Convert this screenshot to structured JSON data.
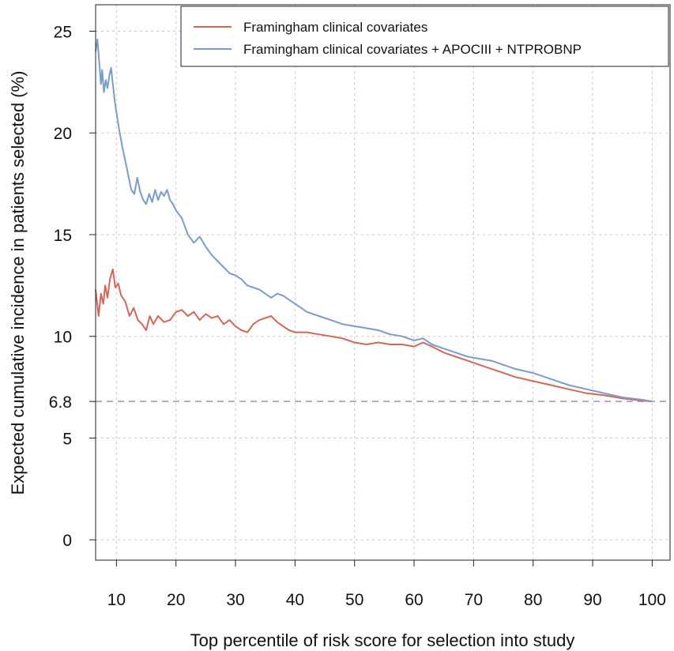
{
  "chart_data": {
    "type": "line",
    "title": "",
    "xlabel": "Top percentile of risk score for selection into study",
    "ylabel": "Expected cumulative incidence in patients selected (%)",
    "xlim": [
      6.5,
      103
    ],
    "ylim": [
      -1,
      26.3
    ],
    "xticks": [
      10,
      20,
      30,
      40,
      50,
      60,
      70,
      80,
      90,
      100
    ],
    "yticks": [
      0,
      5,
      6.8,
      10,
      15,
      20,
      25
    ],
    "ytick_labels": [
      "0",
      "5",
      "6.8",
      "10",
      "15",
      "20",
      "25"
    ],
    "grid": true,
    "legend_position": "top-right",
    "reference_line": {
      "y": 6.8,
      "style": "dashed",
      "color": "#999999"
    },
    "series": [
      {
        "name": "Framingham clinical covariates",
        "color": "#d0675a",
        "x": [
          6.5,
          7.0,
          7.4,
          7.8,
          8.1,
          8.5,
          8.9,
          9.4,
          9.8,
          10.3,
          10.8,
          11.5,
          12.2,
          12.9,
          13.6,
          14.3,
          15.0,
          15.6,
          16.2,
          17.0,
          18.0,
          19.0,
          20.0,
          21.0,
          22.0,
          23.0,
          24.0,
          25.0,
          26.0,
          27.0,
          28.0,
          29.0,
          30.0,
          31.0,
          32.0,
          33.0,
          34.0,
          35.0,
          36.0,
          37.0,
          38.0,
          39.0,
          40.0,
          42.0,
          44.0,
          46.0,
          48.0,
          50.0,
          52.0,
          54.0,
          56.0,
          58.0,
          60.0,
          61.5,
          63.0,
          65.0,
          67.0,
          69.0,
          71.0,
          73.0,
          75.0,
          77.0,
          80.0,
          83.0,
          86.0,
          89.0,
          92.0,
          95.0,
          98.0,
          100.0
        ],
        "y": [
          12.3,
          11.0,
          12.1,
          11.6,
          12.5,
          11.9,
          12.8,
          13.3,
          12.4,
          12.6,
          12.0,
          11.7,
          11.0,
          11.4,
          10.8,
          10.6,
          10.3,
          11.0,
          10.6,
          11.0,
          10.7,
          10.8,
          11.2,
          11.3,
          11.0,
          11.2,
          10.8,
          11.1,
          10.9,
          11.0,
          10.6,
          10.8,
          10.5,
          10.3,
          10.2,
          10.6,
          10.8,
          10.9,
          11.0,
          10.7,
          10.5,
          10.3,
          10.2,
          10.2,
          10.1,
          10.0,
          9.9,
          9.7,
          9.6,
          9.7,
          9.6,
          9.6,
          9.5,
          9.7,
          9.5,
          9.2,
          9.0,
          8.8,
          8.6,
          8.4,
          8.2,
          8.0,
          7.8,
          7.6,
          7.4,
          7.2,
          7.1,
          6.95,
          6.85,
          6.8
        ]
      },
      {
        "name": "Framingham clinical covariates + APOCIII + NTPROBNP",
        "color": "#7b9cc8",
        "x": [
          6.5,
          6.8,
          7.1,
          7.4,
          7.6,
          7.9,
          8.2,
          8.5,
          8.8,
          9.1,
          9.4,
          9.7,
          10.0,
          10.5,
          11.0,
          11.5,
          12.0,
          12.5,
          13.0,
          13.5,
          14.0,
          14.5,
          15.0,
          15.5,
          16.0,
          16.5,
          17.0,
          17.5,
          18.0,
          18.5,
          19.0,
          19.5,
          20.0,
          21.0,
          22.0,
          23.0,
          24.0,
          25.0,
          26.0,
          27.0,
          28.0,
          29.0,
          30.0,
          31.0,
          32.0,
          33.0,
          34.0,
          35.0,
          36.0,
          37.0,
          38.0,
          39.0,
          40.0,
          42.0,
          44.0,
          46.0,
          48.0,
          50.0,
          52.0,
          54.0,
          56.0,
          58.0,
          60.0,
          61.5,
          63.0,
          65.0,
          67.0,
          69.0,
          71.0,
          73.0,
          75.0,
          77.0,
          80.0,
          83.0,
          86.0,
          89.0,
          92.0,
          95.0,
          98.0,
          100.0
        ],
        "y": [
          24.0,
          24.6,
          23.5,
          22.4,
          23.1,
          22.0,
          22.6,
          22.2,
          22.8,
          23.2,
          22.4,
          21.6,
          21.0,
          20.1,
          19.3,
          18.6,
          17.9,
          17.2,
          17.0,
          17.8,
          17.1,
          16.7,
          16.5,
          17.0,
          16.6,
          17.2,
          16.7,
          17.1,
          16.9,
          17.2,
          16.7,
          16.5,
          16.2,
          15.8,
          15.0,
          14.6,
          14.9,
          14.4,
          14.0,
          13.7,
          13.4,
          13.1,
          13.0,
          12.8,
          12.5,
          12.4,
          12.3,
          12.1,
          11.9,
          12.1,
          12.0,
          11.8,
          11.6,
          11.2,
          11.0,
          10.8,
          10.6,
          10.5,
          10.4,
          10.3,
          10.1,
          10.0,
          9.8,
          9.9,
          9.6,
          9.4,
          9.2,
          9.0,
          8.9,
          8.8,
          8.6,
          8.4,
          8.2,
          7.9,
          7.6,
          7.4,
          7.2,
          7.0,
          6.9,
          6.8
        ]
      }
    ]
  }
}
